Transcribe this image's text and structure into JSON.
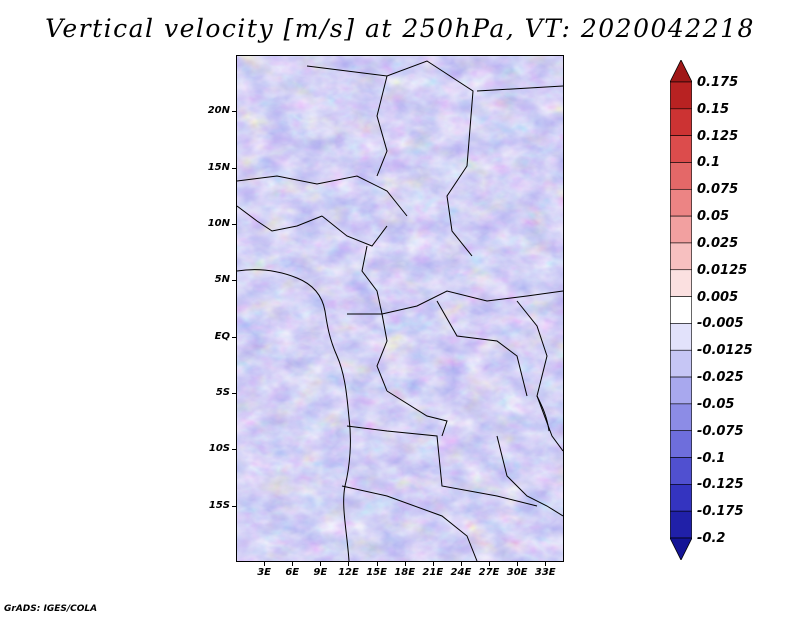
{
  "title": "Vertical velocity [m/s] at 250hPa, VT: 2020042218",
  "map": {
    "lat_labels": [
      "20N",
      "15N",
      "10N",
      "5N",
      "EQ",
      "5S",
      "10S",
      "15S"
    ],
    "lat_values": [
      20,
      15,
      10,
      5,
      0,
      -5,
      -10,
      -15
    ],
    "lon_labels": [
      "3E",
      "6E",
      "9E",
      "12E",
      "15E",
      "18E",
      "21E",
      "24E",
      "27E",
      "30E",
      "33E"
    ],
    "lon_values": [
      3,
      6,
      9,
      12,
      15,
      18,
      21,
      24,
      27,
      30,
      33
    ],
    "lon_range": [
      0,
      35
    ],
    "lat_range": [
      -20,
      25
    ]
  },
  "colorbar": {
    "labels": [
      "0.175",
      "0.15",
      "0.125",
      "0.1",
      "0.075",
      "0.05",
      "0.025",
      "0.0125",
      "0.005",
      "-0.005",
      "-0.0125",
      "-0.025",
      "-0.05",
      "-0.075",
      "-0.1",
      "-0.125",
      "-0.175",
      "-0.2"
    ],
    "colors": [
      "#a01818",
      "#b82222",
      "#cc3333",
      "#dc4c4c",
      "#e46868",
      "#ec8484",
      "#f2a0a0",
      "#f7c0c0",
      "#fbe0e0",
      "#ffffff",
      "#e2e2fb",
      "#c6c6f5",
      "#a8a8ee",
      "#8c8ce6",
      "#6e6edc",
      "#5050d0",
      "#3434c0",
      "#2020a8",
      "#141496"
    ]
  },
  "credit": "GrADS: IGES/COLA"
}
